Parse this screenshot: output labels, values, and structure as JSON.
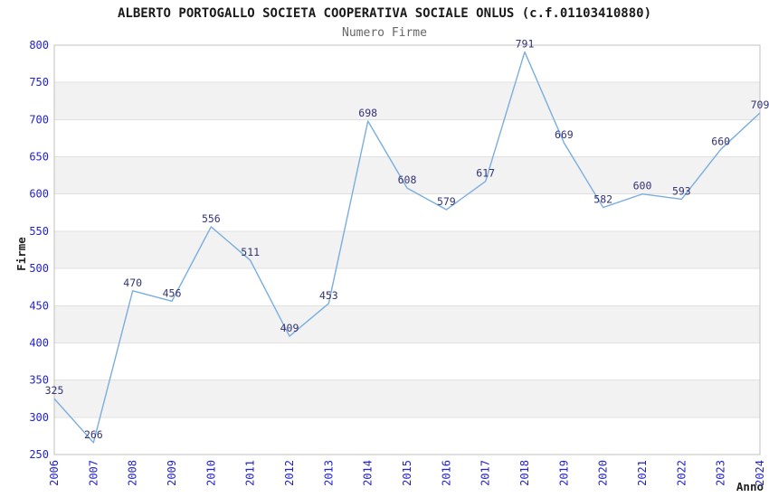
{
  "chart_data": {
    "type": "line",
    "title": "ALBERTO PORTOGALLO SOCIETA COOPERATIVA SOCIALE ONLUS (c.f.01103410880)",
    "subtitle": "Numero Firme",
    "xlabel": "Anno",
    "ylabel": "Firme",
    "x": [
      2006,
      2007,
      2008,
      2009,
      2010,
      2011,
      2012,
      2013,
      2014,
      2015,
      2016,
      2017,
      2018,
      2019,
      2020,
      2021,
      2022,
      2023,
      2024
    ],
    "values": [
      325,
      266,
      470,
      456,
      556,
      511,
      409,
      453,
      698,
      608,
      579,
      617,
      791,
      669,
      582,
      600,
      593,
      660,
      709
    ],
    "ylim": [
      250,
      800
    ],
    "ytick_step": 50,
    "grid": true,
    "legend": false,
    "band_fill": true,
    "point_labels": true,
    "colors": {
      "line": "#7aaede",
      "point_label": "#333377",
      "tick_label": "#2323cc",
      "band": "#f2f2f2",
      "gridline": "#e0e0e0",
      "border": "#c0c0c0",
      "title": "#1a1a1a",
      "subtitle": "#666666",
      "axis_label": "#222222",
      "background": "#ffffff"
    }
  }
}
